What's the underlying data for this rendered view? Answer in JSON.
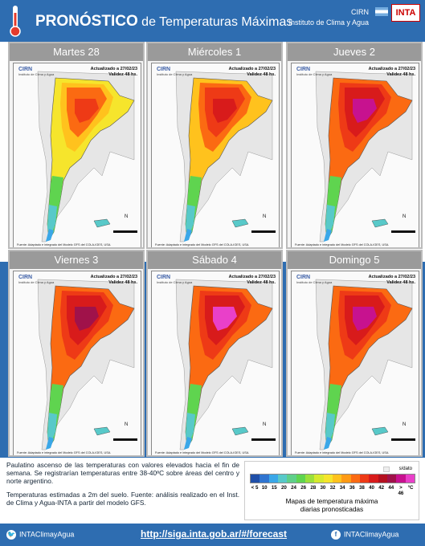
{
  "header": {
    "title_strong": "PRONÓSTICO",
    "title_rest": " de Temperaturas  Máximas",
    "org_short": "CIRN",
    "org_full": "Instituto de Clima y Agua",
    "logo": "INTA",
    "icon": "thermometer-icon"
  },
  "panels": [
    {
      "day": "Martes 28"
    },
    {
      "day": "Miércoles 1"
    },
    {
      "day": "Jueves 2"
    },
    {
      "day": "Viernes 3"
    },
    {
      "day": "Sábado 4"
    },
    {
      "day": "Domingo 5"
    }
  ],
  "map_labels": {
    "logo": "CIRN",
    "logo_sub": "Instituto de Clima y Agua",
    "updated": "Actualizado a 27/02/23",
    "validity": "Validez 48 hs.",
    "source": "Fuente: Adaptado e integrado del Modelo GFS del COLA-IGES, USA.",
    "north": "N",
    "scale_bar": "0    250    500 Km",
    "lat_ticks": [
      "-25°",
      "-30°",
      "-35°",
      "-40°",
      "-45°",
      "-50°",
      "-55°"
    ],
    "lon_ticks": [
      "-75°",
      "-70°",
      "-65°",
      "-60°",
      "-55°"
    ]
  },
  "description": {
    "p1": "Paulatino ascenso de las temperaturas con valores elevados hacia el fin de semana. Se registrarían temperaturas entre 38-40ºC sobre áreas del centro y norte argentino.",
    "p2": "Temperaturas estimadas a 2m del suelo. Fuente: análisis realizado en el Inst. de Clima y Agua-INTA a partir del modelo GFS."
  },
  "legend": {
    "no_data": "s/dato",
    "colors": [
      "#1f4fa8",
      "#2f74d0",
      "#3aa7e8",
      "#58c9c9",
      "#5fcf8a",
      "#5fd44f",
      "#9be03b",
      "#d6ea2e",
      "#f6e52c",
      "#ffc21d",
      "#ff9a14",
      "#fb6a12",
      "#ee3a16",
      "#d81b1b",
      "#b4101f",
      "#a0124a",
      "#c7128f",
      "#e940c9"
    ],
    "ticks": [
      "< 5",
      "10",
      "15",
      "20",
      "24",
      "26",
      "28",
      "30",
      "32",
      "34",
      "36",
      "38",
      "40",
      "42",
      "44",
      "> 46",
      "°C"
    ],
    "caption1": "Mapas de temperatura máxima",
    "caption2": "diarias pronosticadas"
  },
  "footer": {
    "twitter": "INTAClimayAgua",
    "url": "http://siga.inta.gob.ar/#/forecast",
    "facebook": "INTAClimayAgua"
  }
}
